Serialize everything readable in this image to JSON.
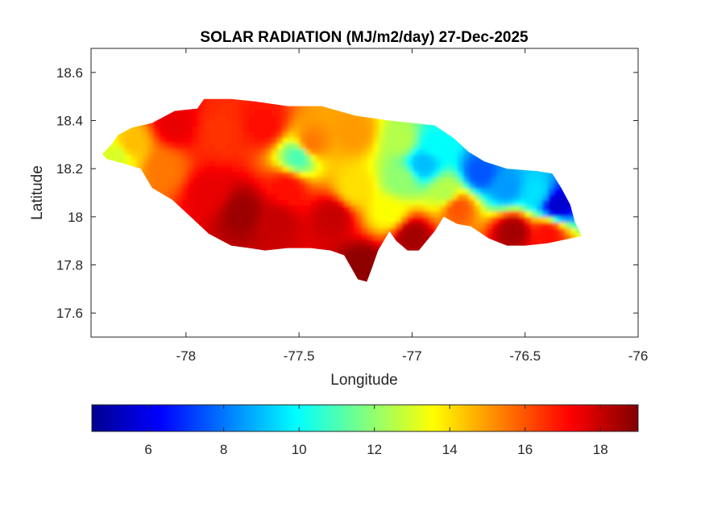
{
  "chart_data": {
    "type": "heatmap",
    "title": "SOLAR RADIATION (MJ/m2/day) 27-Dec-2025",
    "xlabel": "Longitude",
    "ylabel": "Latitude",
    "xlim": [
      -78.42,
      -76
    ],
    "ylim": [
      17.5,
      18.7
    ],
    "x_ticks": [
      -78,
      -77.5,
      -77,
      -76.5,
      -76
    ],
    "x_tick_labels": [
      "-78",
      "-77.5",
      "-77",
      "-76.5",
      "-76"
    ],
    "y_ticks": [
      17.6,
      17.8,
      18,
      18.2,
      18.4,
      18.6
    ],
    "y_tick_labels": [
      "17.6",
      "17.8",
      "18",
      "18.2",
      "18.4",
      "18.6"
    ],
    "colorbar": {
      "colormap": "jet",
      "orientation": "horizontal",
      "location": "bottom",
      "clim": [
        4.5,
        19
      ],
      "ticks": [
        6,
        8,
        10,
        12,
        14,
        16,
        18
      ],
      "tick_labels": [
        "6",
        "8",
        "10",
        "12",
        "14",
        "16",
        "18"
      ]
    },
    "region_outline_lonlat": [
      [
        -78.37,
        18.26
      ],
      [
        -78.33,
        18.3
      ],
      [
        -78.3,
        18.34
      ],
      [
        -78.24,
        18.37
      ],
      [
        -78.15,
        18.39
      ],
      [
        -78.05,
        18.44
      ],
      [
        -77.95,
        18.45
      ],
      [
        -77.92,
        18.49
      ],
      [
        -77.8,
        18.49
      ],
      [
        -77.7,
        18.48
      ],
      [
        -77.55,
        18.46
      ],
      [
        -77.4,
        18.46
      ],
      [
        -77.25,
        18.42
      ],
      [
        -77.1,
        18.4
      ],
      [
        -77.0,
        18.39
      ],
      [
        -76.9,
        18.38
      ],
      [
        -76.82,
        18.33
      ],
      [
        -76.75,
        18.27
      ],
      [
        -76.68,
        18.23
      ],
      [
        -76.58,
        18.2
      ],
      [
        -76.45,
        18.19
      ],
      [
        -76.38,
        18.18
      ],
      [
        -76.34,
        18.12
      ],
      [
        -76.3,
        18.05
      ],
      [
        -76.28,
        17.98
      ],
      [
        -76.25,
        17.92
      ],
      [
        -76.3,
        17.91
      ],
      [
        -76.4,
        17.89
      ],
      [
        -76.5,
        17.88
      ],
      [
        -76.58,
        17.88
      ],
      [
        -76.66,
        17.91
      ],
      [
        -76.74,
        17.96
      ],
      [
        -76.8,
        17.97
      ],
      [
        -76.86,
        18.0
      ],
      [
        -76.9,
        17.94
      ],
      [
        -76.97,
        17.86
      ],
      [
        -77.02,
        17.86
      ],
      [
        -77.07,
        17.9
      ],
      [
        -77.1,
        17.94
      ],
      [
        -77.15,
        17.86
      ],
      [
        -77.18,
        17.78
      ],
      [
        -77.2,
        17.73
      ],
      [
        -77.24,
        17.74
      ],
      [
        -77.27,
        17.79
      ],
      [
        -77.3,
        17.84
      ],
      [
        -77.36,
        17.86
      ],
      [
        -77.45,
        17.87
      ],
      [
        -77.55,
        17.87
      ],
      [
        -77.65,
        17.86
      ],
      [
        -77.72,
        17.87
      ],
      [
        -77.8,
        17.88
      ],
      [
        -77.9,
        17.93
      ],
      [
        -77.98,
        18.0
      ],
      [
        -78.06,
        18.07
      ],
      [
        -78.15,
        18.12
      ],
      [
        -78.2,
        18.2
      ],
      [
        -78.27,
        18.22
      ],
      [
        -78.35,
        18.24
      ]
    ],
    "field_anchor_points": [
      {
        "lon": -78.25,
        "lat": 18.3,
        "value": 14.5
      },
      {
        "lon": -78.05,
        "lat": 18.38,
        "value": 17.5
      },
      {
        "lon": -77.85,
        "lat": 18.35,
        "value": 16.5
      },
      {
        "lon": -77.65,
        "lat": 18.38,
        "value": 17.0
      },
      {
        "lon": -77.45,
        "lat": 18.3,
        "value": 15.5
      },
      {
        "lon": -77.5,
        "lat": 18.25,
        "value": 11.0
      },
      {
        "lon": -77.25,
        "lat": 18.35,
        "value": 15.0
      },
      {
        "lon": -77.05,
        "lat": 18.32,
        "value": 12.5
      },
      {
        "lon": -76.9,
        "lat": 18.3,
        "value": 10.0
      },
      {
        "lon": -76.95,
        "lat": 18.22,
        "value": 9.0
      },
      {
        "lon": -77.05,
        "lat": 18.15,
        "value": 12.0
      },
      {
        "lon": -76.85,
        "lat": 18.1,
        "value": 12.5
      },
      {
        "lon": -76.7,
        "lat": 18.18,
        "value": 7.5
      },
      {
        "lon": -76.58,
        "lat": 18.12,
        "value": 8.5
      },
      {
        "lon": -76.45,
        "lat": 18.1,
        "value": 9.5
      },
      {
        "lon": -76.36,
        "lat": 18.05,
        "value": 5.5
      },
      {
        "lon": -76.55,
        "lat": 17.94,
        "value": 18.5
      },
      {
        "lon": -76.4,
        "lat": 17.93,
        "value": 17.0
      },
      {
        "lon": -76.8,
        "lat": 18.04,
        "value": 16.0
      },
      {
        "lon": -77.0,
        "lat": 17.92,
        "value": 18.5
      },
      {
        "lon": -77.22,
        "lat": 17.8,
        "value": 18.8
      },
      {
        "lon": -77.35,
        "lat": 18.0,
        "value": 18.0
      },
      {
        "lon": -77.6,
        "lat": 17.98,
        "value": 18.0
      },
      {
        "lon": -77.75,
        "lat": 18.02,
        "value": 18.6
      },
      {
        "lon": -77.9,
        "lat": 18.1,
        "value": 17.5
      },
      {
        "lon": -78.1,
        "lat": 18.2,
        "value": 15.5
      },
      {
        "lon": -77.25,
        "lat": 18.12,
        "value": 14.0
      },
      {
        "lon": -77.1,
        "lat": 18.02,
        "value": 13.5
      },
      {
        "lon": -77.55,
        "lat": 18.12,
        "value": 17.0
      },
      {
        "lon": -78.3,
        "lat": 18.26,
        "value": 13.0
      }
    ]
  }
}
